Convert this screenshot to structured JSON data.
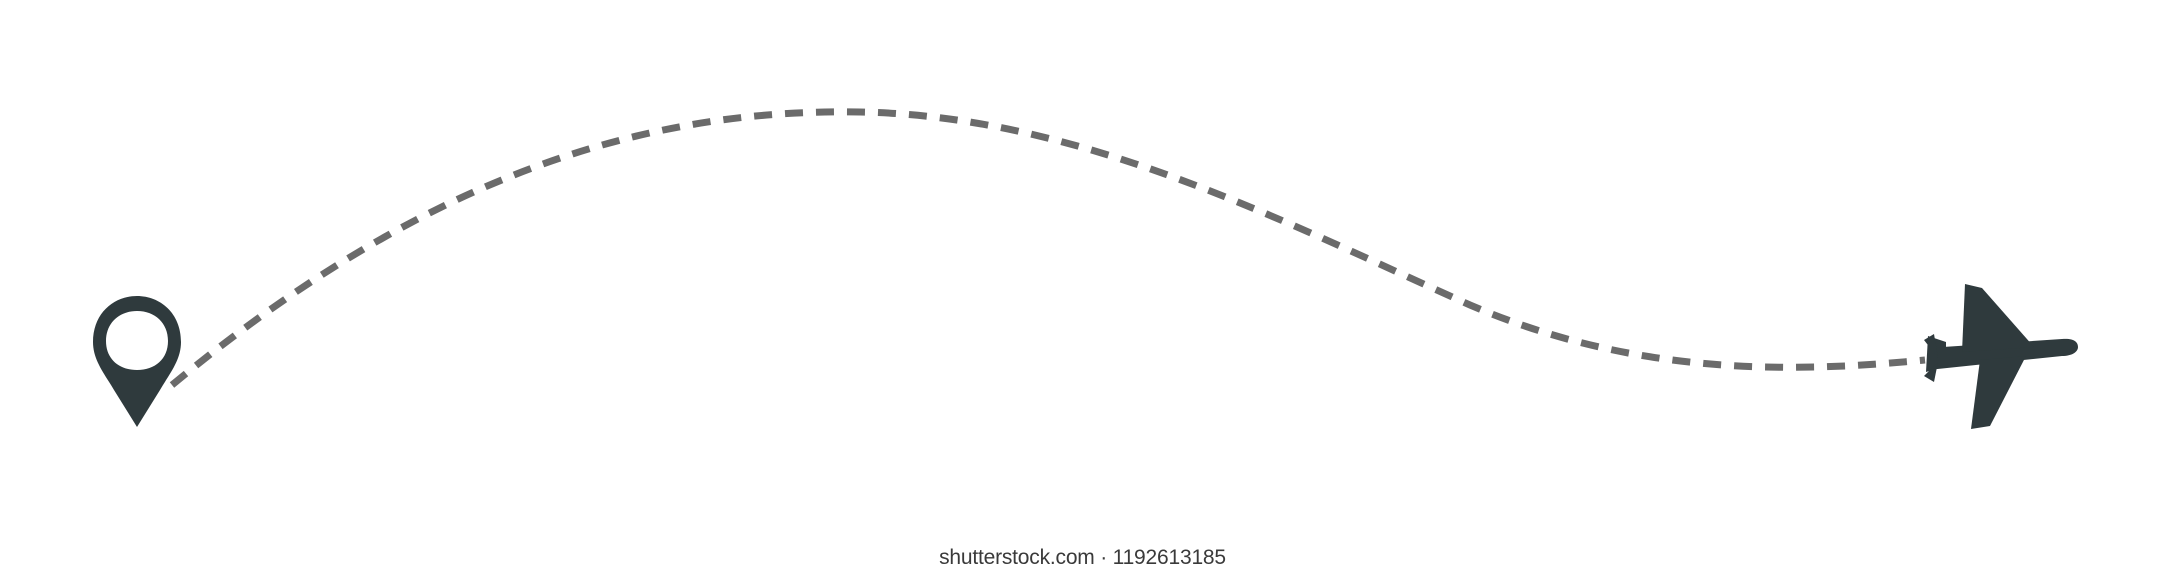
{
  "watermark": {
    "text": "shutterstock.com · 1192613185"
  },
  "icons": {
    "origin": "location-pin-icon",
    "destination": "airplane-icon"
  },
  "colors": {
    "icon": "#2f3a3d",
    "path": "#6b6b6b",
    "background": "#ffffff"
  }
}
